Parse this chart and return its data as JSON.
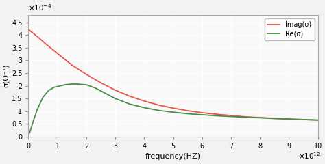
{
  "title": "",
  "xlabel": "frequency(HZ)",
  "ylabel": "σ(Ω⁻¹)",
  "xlim": [
    0,
    10000000000000.0
  ],
  "ylim": [
    0,
    0.00048
  ],
  "xticks": [
    0,
    1000000000000.0,
    2000000000000.0,
    3000000000000.0,
    4000000000000.0,
    5000000000000.0,
    6000000000000.0,
    7000000000000.0,
    8000000000000.0,
    9000000000000.0,
    10000000000000.0
  ],
  "xtick_labels": [
    "0",
    "1",
    "2",
    "3",
    "4",
    "5",
    "6",
    "7",
    "8",
    "9",
    "10"
  ],
  "yticks": [
    0,
    5e-05,
    0.0001,
    0.00015,
    0.0002,
    0.00025,
    0.0003,
    0.00035,
    0.0004,
    0.00045
  ],
  "ytick_labels": [
    "0",
    "0.5",
    "1",
    "1.5",
    "2",
    "2.5",
    "3",
    "3.5",
    "4",
    "4.5"
  ],
  "imag_color": "#e8534a",
  "real_color": "#4a8c4a",
  "imag_x": [
    0,
    300000000000.0,
    600000000000.0,
    1000000000000.0,
    1500000000000.0,
    2000000000000.0,
    2500000000000.0,
    3000000000000.0,
    3500000000000.0,
    4000000000000.0,
    4500000000000.0,
    5000000000000.0,
    5500000000000.0,
    6000000000000.0,
    6500000000000.0,
    7000000000000.0,
    7500000000000.0,
    8000000000000.0,
    8500000000000.0,
    9000000000000.0,
    9500000000000.0,
    10000000000000.0
  ],
  "imag_y": [
    0.000422,
    0.000395,
    0.000365,
    0.000328,
    0.000282,
    0.000245,
    0.000212,
    0.000183,
    0.000159,
    0.00014,
    0.000124,
    0.000112,
    0.000102,
    9.4e-05,
    8.8e-05,
    8.3e-05,
    7.8e-05,
    7.5e-05,
    7.2e-05,
    6.9e-05,
    6.7e-05,
    6.5e-05
  ],
  "real_x": [
    0,
    50000000000.0,
    150000000000.0,
    300000000000.0,
    500000000000.0,
    700000000000.0,
    900000000000.0,
    1000000000000.0,
    1100000000000.0,
    1300000000000.0,
    1500000000000.0,
    1700000000000.0,
    2000000000000.0,
    2300000000000.0,
    2600000000000.0,
    3000000000000.0,
    3500000000000.0,
    4000000000000.0,
    4500000000000.0,
    5000000000000.0,
    5500000000000.0,
    6000000000000.0,
    6500000000000.0,
    7000000000000.0,
    7500000000000.0,
    8000000000000.0,
    8500000000000.0,
    9000000000000.0,
    9500000000000.0,
    10000000000000.0
  ],
  "real_y": [
    5e-06,
    1.8e-05,
    5.5e-05,
    0.000105,
    0.000155,
    0.000182,
    0.000195,
    0.000197,
    0.0002,
    0.000205,
    0.000207,
    0.000207,
    0.000204,
    0.000192,
    0.000174,
    0.00015,
    0.000128,
    0.000114,
    0.000103,
    9.6e-05,
    9e-05,
    8.6e-05,
    8.2e-05,
    7.9e-05,
    7.6e-05,
    7.4e-05,
    7.1e-05,
    6.9e-05,
    6.7e-05,
    6.5e-05
  ],
  "legend_imag": "Imag(σ)",
  "legend_real": "Re(σ)",
  "bg_color": "#f2f2f2",
  "plot_bg_color": "#f9f9f9",
  "grid_color": "#ffffff",
  "linewidth": 1.3
}
